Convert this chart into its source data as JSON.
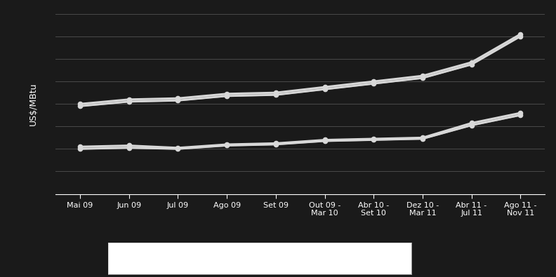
{
  "x_labels": [
    "Mai 09",
    "Jun 09",
    "Jul 09",
    "Ago 09",
    "Set 09",
    "Out 09 -\nMar 10",
    "Abr 10 -\nSet 10",
    "Dez 10 -\nMar 11",
    "Abr 11 -\nJul 11",
    "Ago 11 -\nNov 11"
  ],
  "series_upper": [
    8.0,
    8.4,
    8.5,
    8.9,
    9.0,
    9.5,
    10.0,
    10.5,
    11.7,
    14.2
  ],
  "series_upper_top": [
    7.8,
    8.2,
    8.3,
    8.7,
    8.8,
    9.3,
    9.8,
    10.3,
    11.5,
    14.0
  ],
  "series_lower": [
    4.2,
    4.3,
    4.1,
    4.4,
    4.5,
    4.8,
    4.9,
    5.0,
    6.3,
    7.2
  ],
  "series_lower_top": [
    4.0,
    4.1,
    4.0,
    4.3,
    4.4,
    4.7,
    4.8,
    4.9,
    6.1,
    7.0
  ],
  "line_color": "#d8d8d8",
  "bg_color": "#1a1a1a",
  "text_color": "#ffffff",
  "grid_color": "#4a4a4a",
  "ylabel": "US$/MBtu",
  "ylim": [
    0,
    16
  ],
  "yticks": [
    0,
    2,
    4,
    6,
    8,
    10,
    12,
    14,
    16
  ],
  "legend_box_color": "#ffffff",
  "figsize": [
    7.92,
    3.95
  ],
  "dpi": 100
}
